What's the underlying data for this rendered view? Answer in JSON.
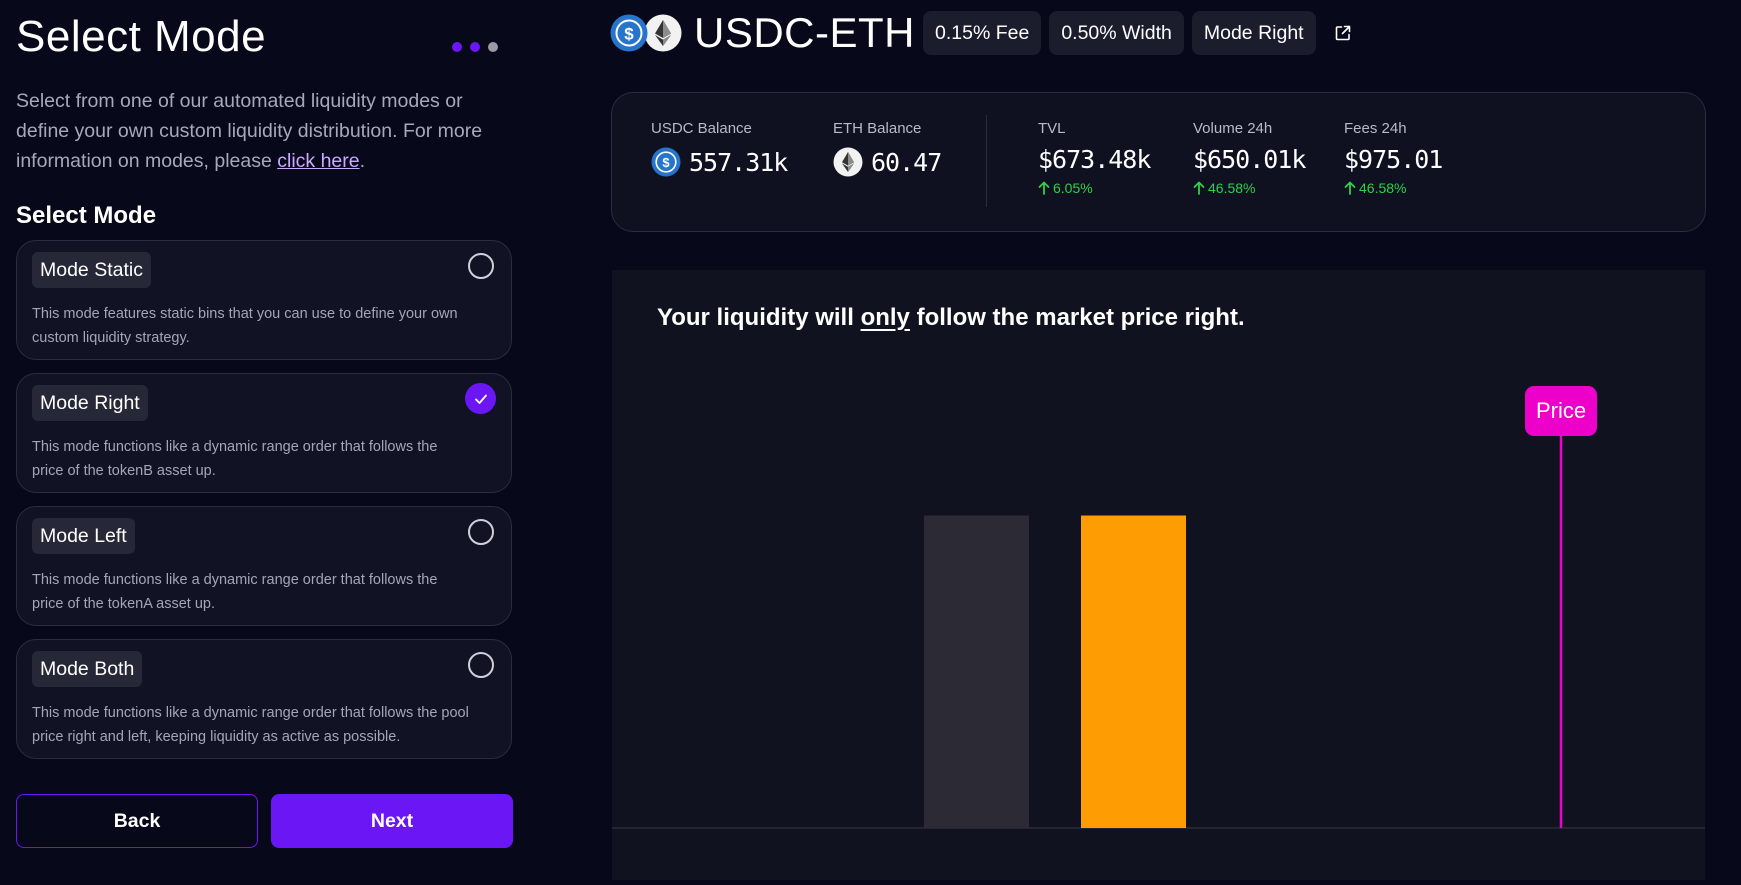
{
  "page": {
    "title": "Select Mode",
    "intro_text": "Select from one of our automated liquidity modes or define your own custom liquidity distribution. For more information on modes, please ",
    "intro_link": "click here",
    "intro_end": ".",
    "section_title": "Select Mode",
    "steps": {
      "total": 3,
      "completed": 2
    }
  },
  "modes": [
    {
      "label": "Mode Static",
      "description": "This mode features static bins that you can use to define your own custom liquidity strategy.",
      "selected": false
    },
    {
      "label": "Mode Right",
      "description": "This mode functions like a dynamic range order that follows the price of the tokenB asset up.",
      "selected": true
    },
    {
      "label": "Mode Left",
      "description": "This mode functions like a dynamic range order that follows the price of the tokenA asset up.",
      "selected": false
    },
    {
      "label": "Mode Both",
      "description": "This mode functions like a dynamic range order that follows the pool price right and left, keeping liquidity as active as possible.",
      "selected": false
    }
  ],
  "buttons": {
    "back": "Back",
    "next": "Next"
  },
  "pool": {
    "pair": "USDC-ETH",
    "fee_pill": "0.15% Fee",
    "width_pill": "0.50% Width",
    "mode_pill": "Mode Right",
    "icons": [
      "usdc-icon",
      "eth-icon",
      "external-link-icon"
    ]
  },
  "stats": {
    "usdc_balance_label": "USDC Balance",
    "usdc_balance_value": "557.31k",
    "eth_balance_label": "ETH Balance",
    "eth_balance_value": "60.47",
    "tvl_label": "TVL",
    "tvl_value": "$673.48k",
    "tvl_change": "6.05%",
    "volume_label": "Volume 24h",
    "volume_value": "$650.01k",
    "volume_change": "46.58%",
    "fees_label": "Fees 24h",
    "fees_value": "$975.01",
    "fees_change": "46.58%"
  },
  "chart": {
    "heading_before": "Your liquidity will ",
    "heading_emphasis": "only",
    "heading_after": " follow the market price right.",
    "price_label": "Price"
  },
  "chart_data": {
    "type": "bar",
    "bars": [
      {
        "fraction": 0.56,
        "color": "#2b2a35"
      },
      {
        "fraction": 0.56,
        "color": "#fe9c03"
      }
    ],
    "price_marker_color": "#ee00cb"
  },
  "colors": {
    "accent": "#6b17f5",
    "background": "#07081a",
    "positive": "#2fd14a",
    "price": "#ee00cb",
    "bar_active": "#fe9c03",
    "bar_inactive": "#2b2a35"
  }
}
